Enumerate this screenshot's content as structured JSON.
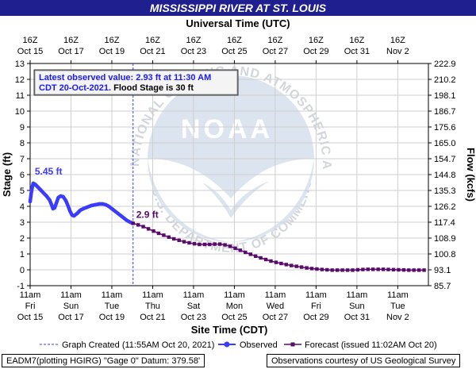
{
  "title": "MISSISSIPPI RIVER AT ST. LOUIS",
  "top_axis_label": "Universal Time (UTC)",
  "bottom_axis_label": "Site Time (CDT)",
  "colors": {
    "title_bg": "#1f1f8f",
    "observed": "#3b3bff",
    "forecast": "#5a0a6a",
    "annotation_text": "#1a1aff",
    "grid": "#cfcfcf"
  },
  "watermark": {
    "top_text": "NATIONAL OCEANIC AND ATMOSPHERIC ADMINISTRATION",
    "bottom_text": "U.S. DEPARTMENT OF COMMERCE",
    "center_text": "NOAA"
  },
  "info_box": {
    "line1": "Latest observed value: 2.93 ft at 11:30 AM",
    "line2_blue": "CDT 20-Oct-2021.",
    "line2_black": " Flood Stage is 30 ft"
  },
  "legend": {
    "graph_created": "Graph Created (11:55AM Oct 20, 2021)",
    "observed": "Observed",
    "forecast": "Forecast (issued 11:02AM Oct 20)"
  },
  "footer": {
    "left": "EADM7(plotting HGIRG) \"Gage 0\" Datum: 379.58'",
    "right": "Observations courtesy of US Geological Survey"
  },
  "chart_data": {
    "type": "line",
    "title": "MISSISSIPPI RIVER AT ST. LOUIS",
    "x_unit": "days from Oct 15 11am CDT",
    "xlim": [
      0,
      19.5
    ],
    "ylabel": "Stage (ft)",
    "ylim": [
      -1,
      13
    ],
    "y_ticks": [
      -1,
      0,
      1,
      2,
      3,
      4,
      5,
      6,
      7,
      8,
      9,
      10,
      11,
      12,
      13
    ],
    "y2label": "Flow (kcfs)",
    "y2_ticks": [
      "85.7",
      "93.1",
      "100.8",
      "108.9",
      "117.4",
      "126.2",
      "135.3",
      "144.8",
      "154.7",
      "165.0",
      "175.6",
      "186.7",
      "198.1",
      "210.2",
      "222.9"
    ],
    "bottom_ticks": [
      {
        "x": 0,
        "line1": "11am",
        "line2": "Fri",
        "line3": "Oct 15"
      },
      {
        "x": 2,
        "line1": "11am",
        "line2": "Sun",
        "line3": "Oct 17"
      },
      {
        "x": 4,
        "line1": "11am",
        "line2": "Tue",
        "line3": "Oct 19"
      },
      {
        "x": 6,
        "line1": "11am",
        "line2": "Thu",
        "line3": "Oct 21"
      },
      {
        "x": 8,
        "line1": "11am",
        "line2": "Sat",
        "line3": "Oct 23"
      },
      {
        "x": 10,
        "line1": "11am",
        "line2": "Mon",
        "line3": "Oct 25"
      },
      {
        "x": 12,
        "line1": "11am",
        "line2": "Wed",
        "line3": "Oct 27"
      },
      {
        "x": 14,
        "line1": "11am",
        "line2": "Fri",
        "line3": "Oct 29"
      },
      {
        "x": 16,
        "line1": "11am",
        "line2": "Sun",
        "line3": "Oct 31"
      },
      {
        "x": 18,
        "line1": "11am",
        "line2": "Tue",
        "line3": "Nov 2"
      }
    ],
    "top_ticks": [
      {
        "x": 0,
        "line1": "16Z",
        "line2": "Oct 15"
      },
      {
        "x": 2,
        "line1": "16Z",
        "line2": "Oct 17"
      },
      {
        "x": 4,
        "line1": "16Z",
        "line2": "Oct 19"
      },
      {
        "x": 6,
        "line1": "16Z",
        "line2": "Oct 21"
      },
      {
        "x": 8,
        "line1": "16Z",
        "line2": "Oct 23"
      },
      {
        "x": 10,
        "line1": "16Z",
        "line2": "Oct 25"
      },
      {
        "x": 12,
        "line1": "16Z",
        "line2": "Oct 27"
      },
      {
        "x": 14,
        "line1": "16Z",
        "line2": "Oct 29"
      },
      {
        "x": 16,
        "line1": "16Z",
        "line2": "Oct 31"
      },
      {
        "x": 18,
        "line1": "16Z",
        "line2": "Nov 2"
      }
    ],
    "graph_created_x": 5.04,
    "annotations": [
      {
        "text": "5.45 ft",
        "x": 0.15,
        "y": 5.45,
        "color": "observed"
      },
      {
        "text": "2.9 ft",
        "x": 5.04,
        "y": 2.93,
        "color": "forecast"
      }
    ],
    "series": [
      {
        "name": "Observed",
        "points": [
          [
            0.0,
            4.3
          ],
          [
            0.05,
            4.8
          ],
          [
            0.1,
            5.2
          ],
          [
            0.15,
            5.45
          ],
          [
            0.25,
            5.38
          ],
          [
            0.35,
            5.25
          ],
          [
            0.5,
            5.05
          ],
          [
            0.65,
            4.85
          ],
          [
            0.8,
            4.65
          ],
          [
            0.95,
            4.4
          ],
          [
            1.05,
            4.1
          ],
          [
            1.12,
            3.85
          ],
          [
            1.2,
            3.9
          ],
          [
            1.28,
            4.2
          ],
          [
            1.38,
            4.55
          ],
          [
            1.5,
            4.65
          ],
          [
            1.62,
            4.6
          ],
          [
            1.75,
            4.35
          ],
          [
            1.85,
            4.05
          ],
          [
            1.95,
            3.7
          ],
          [
            2.05,
            3.45
          ],
          [
            2.15,
            3.4
          ],
          [
            2.3,
            3.55
          ],
          [
            2.45,
            3.75
          ],
          [
            2.6,
            3.85
          ],
          [
            2.8,
            3.95
          ],
          [
            3.0,
            4.05
          ],
          [
            3.2,
            4.1
          ],
          [
            3.4,
            4.15
          ],
          [
            3.55,
            4.15
          ],
          [
            3.7,
            4.1
          ],
          [
            3.85,
            4.0
          ],
          [
            4.0,
            3.85
          ],
          [
            4.15,
            3.7
          ],
          [
            4.3,
            3.55
          ],
          [
            4.45,
            3.4
          ],
          [
            4.6,
            3.25
          ],
          [
            4.75,
            3.1
          ],
          [
            4.9,
            3.0
          ],
          [
            5.04,
            2.93
          ]
        ]
      },
      {
        "name": "Forecast",
        "points": [
          [
            5.04,
            2.93
          ],
          [
            5.29,
            2.83
          ],
          [
            5.54,
            2.72
          ],
          [
            5.79,
            2.58
          ],
          [
            6.04,
            2.44
          ],
          [
            6.29,
            2.3
          ],
          [
            6.54,
            2.18
          ],
          [
            6.79,
            2.06
          ],
          [
            7.04,
            1.95
          ],
          [
            7.29,
            1.86
          ],
          [
            7.54,
            1.77
          ],
          [
            7.79,
            1.7
          ],
          [
            8.04,
            1.64
          ],
          [
            8.29,
            1.6
          ],
          [
            8.54,
            1.6
          ],
          [
            8.79,
            1.6
          ],
          [
            9.04,
            1.62
          ],
          [
            9.29,
            1.62
          ],
          [
            9.54,
            1.57
          ],
          [
            9.79,
            1.48
          ],
          [
            10.04,
            1.36
          ],
          [
            10.29,
            1.23
          ],
          [
            10.54,
            1.1
          ],
          [
            10.79,
            0.98
          ],
          [
            11.04,
            0.86
          ],
          [
            11.29,
            0.75
          ],
          [
            11.54,
            0.65
          ],
          [
            11.79,
            0.55
          ],
          [
            12.04,
            0.47
          ],
          [
            12.29,
            0.4
          ],
          [
            12.54,
            0.33
          ],
          [
            12.79,
            0.27
          ],
          [
            13.04,
            0.22
          ],
          [
            13.29,
            0.17
          ],
          [
            13.54,
            0.12
          ],
          [
            13.79,
            0.08
          ],
          [
            14.04,
            0.05
          ],
          [
            14.29,
            0.02
          ],
          [
            14.54,
            0.0
          ],
          [
            14.79,
            -0.02
          ],
          [
            15.04,
            -0.02
          ],
          [
            15.29,
            -0.02
          ],
          [
            15.54,
            -0.02
          ],
          [
            15.79,
            -0.02
          ],
          [
            16.04,
            0.0
          ],
          [
            16.29,
            0.02
          ],
          [
            16.54,
            0.03
          ],
          [
            16.79,
            0.03
          ],
          [
            17.04,
            0.03
          ],
          [
            17.29,
            0.03
          ],
          [
            17.54,
            0.02
          ],
          [
            17.79,
            0.01
          ],
          [
            18.04,
            0.0
          ],
          [
            18.29,
            -0.01
          ],
          [
            18.54,
            -0.02
          ],
          [
            18.79,
            -0.02
          ],
          [
            19.04,
            -0.02
          ],
          [
            19.29,
            -0.02
          ]
        ]
      }
    ]
  }
}
